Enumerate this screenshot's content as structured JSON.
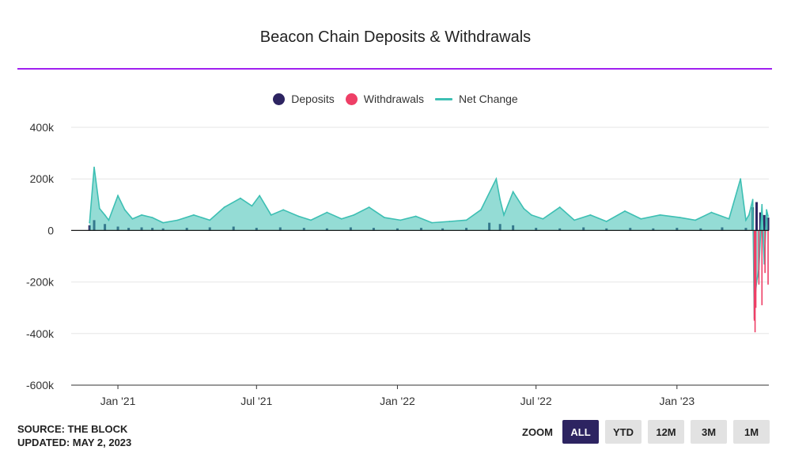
{
  "chart_data": {
    "type": "bar",
    "title": "Beacon Chain Deposits & Withdrawals",
    "legend": {
      "placement": "top-center",
      "items": [
        {
          "name": "Deposits",
          "color": "#2d2461",
          "marker": "dot"
        },
        {
          "name": "Withdrawals",
          "color": "#ee3f66",
          "marker": "dot"
        },
        {
          "name": "Net Change",
          "color": "#3dbfb3",
          "marker": "line"
        }
      ]
    },
    "y_ticks": [
      "400k",
      "200k",
      "0",
      "-200k",
      "-400k",
      "-600k"
    ],
    "y_tick_values": [
      400000,
      200000,
      0,
      -200000,
      -400000,
      -600000
    ],
    "ylim": [
      -600000,
      400000
    ],
    "x_ticks": [
      "Jan '21",
      "Jul '21",
      "Jan '22",
      "Jul '22",
      "Jan '23"
    ],
    "x_tick_dates": [
      "2021-01-01",
      "2021-07-01",
      "2022-01-01",
      "2022-07-01",
      "2023-01-01"
    ],
    "xlim": [
      "2020-11-01",
      "2023-05-01"
    ],
    "grid": true,
    "series": [
      {
        "name": "Deposits",
        "color": "#2d2461",
        "x": [
          "2020-11-25",
          "2020-12-01",
          "2020-12-15",
          "2021-01-01",
          "2021-01-15",
          "2021-02-01",
          "2021-02-15",
          "2021-03-01",
          "2021-04-01",
          "2021-05-01",
          "2021-06-01",
          "2021-07-01",
          "2021-08-01",
          "2021-09-01",
          "2021-10-01",
          "2021-11-01",
          "2021-12-01",
          "2022-01-01",
          "2022-02-01",
          "2022-03-01",
          "2022-04-01",
          "2022-05-01",
          "2022-05-15",
          "2022-06-01",
          "2022-07-01",
          "2022-08-01",
          "2022-09-01",
          "2022-10-01",
          "2022-11-01",
          "2022-12-01",
          "2023-01-01",
          "2023-02-01",
          "2023-03-01",
          "2023-04-01",
          "2023-04-10",
          "2023-04-15",
          "2023-04-20",
          "2023-04-25",
          "2023-04-30"
        ],
        "values": [
          20000,
          40000,
          25000,
          15000,
          10000,
          12000,
          10000,
          8000,
          10000,
          12000,
          15000,
          10000,
          12000,
          10000,
          8000,
          12000,
          10000,
          8000,
          10000,
          8000,
          10000,
          30000,
          25000,
          20000,
          10000,
          8000,
          12000,
          8000,
          10000,
          8000,
          10000,
          8000,
          12000,
          10000,
          90000,
          110000,
          70000,
          60000,
          50000
        ]
      },
      {
        "name": "Withdrawals",
        "color": "#ee3f66",
        "x": [
          "2023-04-12",
          "2023-04-13",
          "2023-04-14",
          "2023-04-18",
          "2023-04-22",
          "2023-04-26",
          "2023-04-30"
        ],
        "values": [
          -350000,
          -395000,
          -300000,
          -210000,
          -290000,
          -165000,
          -210000
        ]
      },
      {
        "name": "Net Change",
        "color": "#3dbfb3",
        "x": [
          "2020-11-25",
          "2020-12-01",
          "2020-12-08",
          "2020-12-15",
          "2020-12-20",
          "2021-01-01",
          "2021-01-10",
          "2021-01-20",
          "2021-02-01",
          "2021-02-15",
          "2021-03-01",
          "2021-03-20",
          "2021-04-10",
          "2021-05-01",
          "2021-05-20",
          "2021-06-10",
          "2021-06-25",
          "2021-07-05",
          "2021-07-20",
          "2021-08-05",
          "2021-08-25",
          "2021-09-10",
          "2021-10-01",
          "2021-10-20",
          "2021-11-05",
          "2021-11-25",
          "2021-12-15",
          "2022-01-05",
          "2022-01-25",
          "2022-02-15",
          "2022-03-10",
          "2022-04-01",
          "2022-04-20",
          "2022-05-10",
          "2022-05-15",
          "2022-05-20",
          "2022-06-01",
          "2022-06-15",
          "2022-06-25",
          "2022-07-10",
          "2022-08-01",
          "2022-08-20",
          "2022-09-10",
          "2022-10-01",
          "2022-10-25",
          "2022-11-15",
          "2022-12-10",
          "2023-01-05",
          "2023-01-25",
          "2023-02-15",
          "2023-03-10",
          "2023-03-25",
          "2023-04-01",
          "2023-04-05",
          "2023-04-10",
          "2023-04-12",
          "2023-04-13",
          "2023-04-15",
          "2023-04-18",
          "2023-04-22",
          "2023-04-25",
          "2023-04-28",
          "2023-04-30"
        ],
        "values": [
          30000,
          245000,
          85000,
          60000,
          40000,
          135000,
          80000,
          45000,
          60000,
          50000,
          30000,
          40000,
          60000,
          40000,
          90000,
          125000,
          95000,
          135000,
          60000,
          80000,
          55000,
          40000,
          70000,
          45000,
          60000,
          90000,
          50000,
          40000,
          55000,
          30000,
          35000,
          40000,
          80000,
          200000,
          120000,
          60000,
          150000,
          85000,
          60000,
          45000,
          90000,
          40000,
          60000,
          35000,
          75000,
          45000,
          60000,
          50000,
          40000,
          70000,
          45000,
          200000,
          40000,
          60000,
          120000,
          -340000,
          -260000,
          -200000,
          -150000,
          100000,
          -130000,
          80000,
          55000
        ]
      }
    ]
  },
  "footer": {
    "source": "SOURCE: THE BLOCK",
    "updated": "UPDATED: MAY 2, 2023"
  },
  "zoom": {
    "label": "ZOOM",
    "buttons": [
      "ALL",
      "YTD",
      "12M",
      "3M",
      "1M"
    ],
    "active": "ALL"
  }
}
